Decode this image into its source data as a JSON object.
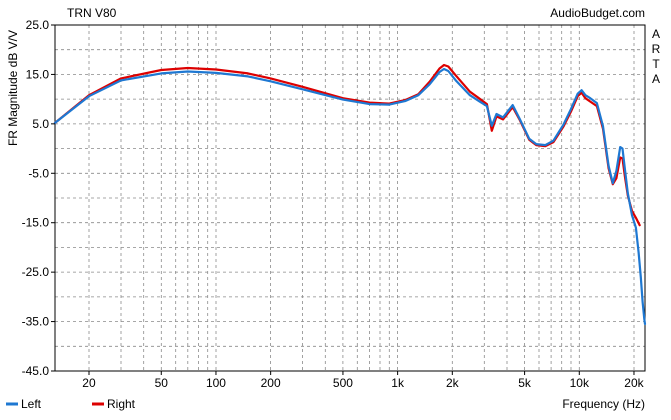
{
  "chart_data": {
    "type": "line",
    "title": "TRN V80",
    "watermark": "AudioBudget.com",
    "side_label": "ARTA",
    "xlabel": "Frequency (Hz)",
    "ylabel": "FR Magnitude dB V/V",
    "x_scale": "log",
    "xlim": [
      13,
      23000
    ],
    "ylim": [
      -45,
      25
    ],
    "x_ticks": [
      {
        "label": "20",
        "value": 20
      },
      {
        "label": "50",
        "value": 50
      },
      {
        "label": "100",
        "value": 100
      },
      {
        "label": "200",
        "value": 200
      },
      {
        "label": "500",
        "value": 500
      },
      {
        "label": "1k",
        "value": 1000
      },
      {
        "label": "2k",
        "value": 2000
      },
      {
        "label": "5k",
        "value": 5000
      },
      {
        "label": "10k",
        "value": 10000
      },
      {
        "label": "20k",
        "value": 20000
      }
    ],
    "y_ticks": [
      {
        "label": "25.0",
        "value": 25
      },
      {
        "label": "15.0",
        "value": 15
      },
      {
        "label": "5.0",
        "value": 5
      },
      {
        "label": "-5.0",
        "value": -5
      },
      {
        "label": "-15.0",
        "value": -15
      },
      {
        "label": "-25.0",
        "value": -25
      },
      {
        "label": "-35.0",
        "value": -35
      },
      {
        "label": "-45.0",
        "value": -45
      }
    ],
    "grid": true,
    "legend_position": "bottom-left",
    "series": [
      {
        "name": "Right",
        "color": "#dd0000",
        "points": [
          [
            13,
            5.2
          ],
          [
            20,
            10.8
          ],
          [
            30,
            14.2
          ],
          [
            50,
            15.9
          ],
          [
            70,
            16.3
          ],
          [
            100,
            16.0
          ],
          [
            150,
            15.2
          ],
          [
            200,
            14.2
          ],
          [
            300,
            12.5
          ],
          [
            500,
            10.2
          ],
          [
            700,
            9.3
          ],
          [
            900,
            9.1
          ],
          [
            1100,
            9.8
          ],
          [
            1300,
            11.0
          ],
          [
            1500,
            13.5
          ],
          [
            1700,
            16.2
          ],
          [
            1800,
            16.9
          ],
          [
            1900,
            16.6
          ],
          [
            2100,
            14.7
          ],
          [
            2500,
            11.5
          ],
          [
            2800,
            10.2
          ],
          [
            3100,
            9.0
          ],
          [
            3300,
            3.6
          ],
          [
            3500,
            6.5
          ],
          [
            3800,
            5.9
          ],
          [
            4300,
            8.4
          ],
          [
            4700,
            5.8
          ],
          [
            5300,
            1.8
          ],
          [
            5800,
            0.7
          ],
          [
            6500,
            0.5
          ],
          [
            7200,
            1.3
          ],
          [
            8200,
            4.5
          ],
          [
            9000,
            7.5
          ],
          [
            9800,
            10.6
          ],
          [
            10300,
            11.3
          ],
          [
            10800,
            10.2
          ],
          [
            11500,
            9.5
          ],
          [
            12500,
            8.6
          ],
          [
            13500,
            4.0
          ],
          [
            14500,
            -4.0
          ],
          [
            15300,
            -7.2
          ],
          [
            16000,
            -6.0
          ],
          [
            16800,
            -1.8
          ],
          [
            17300,
            -2.0
          ],
          [
            17800,
            -5.5
          ],
          [
            18500,
            -9.5
          ],
          [
            19500,
            -12.6
          ],
          [
            20500,
            -14.0
          ],
          [
            21500,
            -15.5
          ]
        ]
      },
      {
        "name": "Left",
        "color": "#1e78d2",
        "points": [
          [
            13,
            5.2
          ],
          [
            20,
            10.6
          ],
          [
            30,
            13.8
          ],
          [
            50,
            15.2
          ],
          [
            70,
            15.6
          ],
          [
            100,
            15.3
          ],
          [
            150,
            14.6
          ],
          [
            200,
            13.6
          ],
          [
            300,
            12.0
          ],
          [
            500,
            9.9
          ],
          [
            700,
            9.0
          ],
          [
            900,
            8.9
          ],
          [
            1100,
            9.6
          ],
          [
            1300,
            10.8
          ],
          [
            1500,
            13.0
          ],
          [
            1700,
            15.5
          ],
          [
            1800,
            16.1
          ],
          [
            1900,
            15.7
          ],
          [
            2100,
            13.7
          ],
          [
            2500,
            10.8
          ],
          [
            2800,
            9.6
          ],
          [
            3100,
            8.6
          ],
          [
            3300,
            4.6
          ],
          [
            3500,
            7.0
          ],
          [
            3800,
            6.3
          ],
          [
            4300,
            8.8
          ],
          [
            4700,
            6.0
          ],
          [
            5300,
            2.0
          ],
          [
            5800,
            0.9
          ],
          [
            6500,
            0.7
          ],
          [
            7200,
            1.6
          ],
          [
            8200,
            4.9
          ],
          [
            9000,
            8.0
          ],
          [
            9800,
            11.1
          ],
          [
            10300,
            11.8
          ],
          [
            10800,
            10.8
          ],
          [
            11500,
            10.2
          ],
          [
            12500,
            9.2
          ],
          [
            13500,
            4.5
          ],
          [
            14500,
            -3.5
          ],
          [
            15300,
            -7.0
          ],
          [
            16000,
            -4.5
          ],
          [
            16800,
            0.3
          ],
          [
            17300,
            0.0
          ],
          [
            17800,
            -4.0
          ],
          [
            18500,
            -9.0
          ],
          [
            19500,
            -13.5
          ],
          [
            20500,
            -16.0
          ],
          [
            21200,
            -21.0
          ],
          [
            21800,
            -26.0
          ],
          [
            22300,
            -31.0
          ],
          [
            22800,
            -34.5
          ],
          [
            23000,
            -35.5
          ]
        ]
      }
    ]
  }
}
